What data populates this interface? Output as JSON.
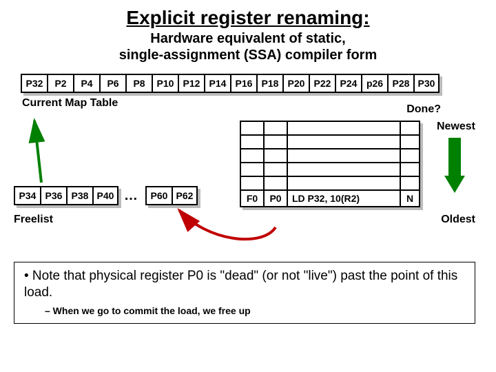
{
  "title": "Explicit register renaming:",
  "subtitle": "Hardware equivalent of static,\nsingle-assignment (SSA) compiler form",
  "map_table": {
    "label": "Current Map Table",
    "cells": [
      "P32",
      "P2",
      "P4",
      "P6",
      "P8",
      "P10",
      "P12",
      "P14",
      "P16",
      "P18",
      "P20",
      "P22",
      "P24",
      "p26",
      "P28",
      "P30"
    ]
  },
  "done_label": "Done?",
  "newest_label": "Newest",
  "oldest_label": "Oldest",
  "buffer": {
    "rows": [
      [
        "",
        "",
        "",
        ""
      ],
      [
        "",
        "",
        "",
        ""
      ],
      [
        "",
        "",
        "",
        ""
      ],
      [
        "",
        "",
        "",
        ""
      ],
      [
        "",
        "",
        "",
        ""
      ],
      [
        "F0",
        "P0",
        "LD P32, 10(R2)",
        "N"
      ]
    ]
  },
  "freelist": {
    "label": "Freelist",
    "group1": [
      "P34",
      "P36",
      "P38",
      "P40"
    ],
    "dots": "…",
    "group2": [
      "P60",
      "P62"
    ]
  },
  "note": {
    "bullet": "• Note that physical register P0 is \"dead\" (or not \"live\") past the point of this load.",
    "sub": "– When we go to commit the load, we free up"
  },
  "colors": {
    "arrow_green": "#008000",
    "arrow_red": "#c00000",
    "shadow": "#bbbbbb"
  }
}
